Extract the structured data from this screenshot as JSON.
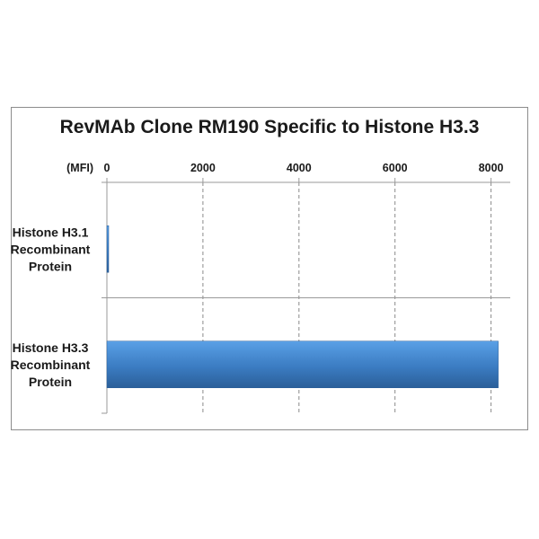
{
  "chart_data": {
    "type": "bar",
    "orientation": "horizontal",
    "title": "RevMAb Clone RM190 Specific to Histone H3.3",
    "axis_unit_label": "(MFI)",
    "xlim": [
      0,
      8400
    ],
    "ticks": [
      0,
      2000,
      4000,
      6000,
      8000
    ],
    "tick_labels": [
      "0",
      "2000",
      "4000",
      "6000",
      "8000"
    ],
    "gridlines": "vertical-dashed",
    "categories": [
      [
        "Histone H3.1",
        "Recombinant",
        "Protein"
      ],
      [
        "Histone H3.3",
        "Recombinant",
        "Protein"
      ]
    ],
    "values": [
      30,
      8150
    ],
    "bar_color": "#4a8fd4"
  }
}
